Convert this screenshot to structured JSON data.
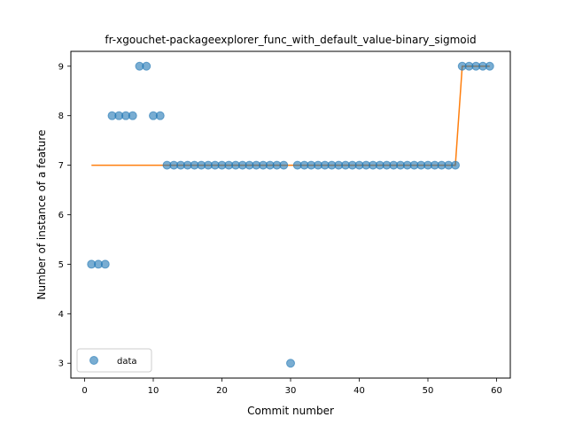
{
  "chart_data": {
    "type": "scatter",
    "title": "fr-xgouchet-packageexplorer_func_with_default_value-binary_sigmoid",
    "xlabel": "Commit number",
    "ylabel": "Number of instance of a feature",
    "xlim": [
      -2,
      62
    ],
    "ylim": [
      2.7,
      9.3
    ],
    "xticks": [
      0,
      10,
      20,
      30,
      40,
      50,
      60
    ],
    "yticks": [
      3,
      4,
      5,
      6,
      7,
      8,
      9
    ],
    "grid": false,
    "legend": {
      "position": "lower-left",
      "entries": [
        "data"
      ]
    },
    "colors": {
      "data": "#1f77b4",
      "fit": "#ff7f0e"
    },
    "series": [
      {
        "name": "data",
        "kind": "scatter",
        "x": [
          1,
          2,
          3,
          4,
          5,
          6,
          7,
          8,
          9,
          10,
          11,
          12,
          13,
          14,
          15,
          16,
          17,
          18,
          19,
          20,
          21,
          22,
          23,
          24,
          25,
          26,
          27,
          28,
          29,
          30,
          31,
          32,
          33,
          34,
          35,
          36,
          37,
          38,
          39,
          40,
          41,
          42,
          43,
          44,
          45,
          46,
          47,
          48,
          49,
          50,
          51,
          52,
          53,
          54,
          55,
          56,
          57,
          58,
          59
        ],
        "y": [
          5,
          5,
          5,
          8,
          8,
          8,
          8,
          9,
          9,
          8,
          8,
          7,
          7,
          7,
          7,
          7,
          7,
          7,
          7,
          7,
          7,
          7,
          7,
          7,
          7,
          7,
          7,
          7,
          7,
          3,
          7,
          7,
          7,
          7,
          7,
          7,
          7,
          7,
          7,
          7,
          7,
          7,
          7,
          7,
          7,
          7,
          7,
          7,
          7,
          7,
          7,
          7,
          7,
          7,
          9,
          9,
          9,
          9,
          9
        ]
      },
      {
        "kind": "line",
        "x": [
          1,
          54,
          55,
          59
        ],
        "y": [
          7,
          7,
          9,
          9
        ]
      }
    ]
  }
}
